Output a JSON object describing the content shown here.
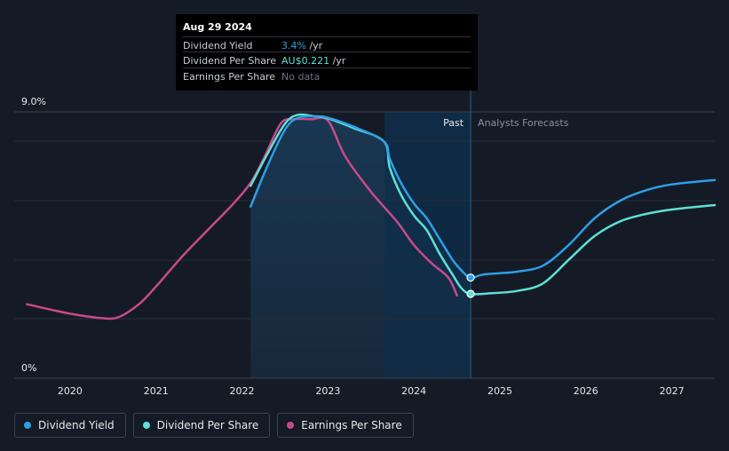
{
  "tooltip": {
    "date": "Aug 29 2024",
    "rows": [
      {
        "label": "Dividend Yield",
        "value": "3.4%",
        "unit": " /yr",
        "color": "#2e9fe6"
      },
      {
        "label": "Dividend Per Share",
        "value": "AU$0.221",
        "unit": " /yr",
        "color": "#5ce1d6"
      },
      {
        "label": "Earnings Per Share",
        "value": "No data",
        "unit": "",
        "color": "#6b7280"
      }
    ]
  },
  "legend": [
    {
      "label": "Dividend Yield",
      "color": "#2e9fe6"
    },
    {
      "label": "Dividend Per Share",
      "color": "#5ce1d6"
    },
    {
      "label": "Earnings Per Share",
      "color": "#c94a8a"
    }
  ],
  "chart_data": {
    "type": "line",
    "y_axis": {
      "top_label": "9.0%",
      "bottom_label": "0%",
      "ylim": [
        0,
        9
      ]
    },
    "x_axis": {
      "ticks": [
        "2020",
        "2021",
        "2022",
        "2023",
        "2024",
        "2025",
        "2026",
        "2027"
      ],
      "xlim": [
        2019.35,
        2027.5
      ]
    },
    "regions": {
      "past_label": "Past",
      "forecast_label": "Analysts Forecasts",
      "split_x": 2024.66,
      "shade_start": 2022.1,
      "dark_start": 2023.66
    },
    "grid": true,
    "series": [
      {
        "name": "Dividend Yield",
        "color": "#2e9fe6",
        "points": [
          [
            2022.1,
            5.8
          ],
          [
            2022.3,
            7.2
          ],
          [
            2022.5,
            8.4
          ],
          [
            2022.65,
            8.8
          ],
          [
            2022.85,
            8.85
          ],
          [
            2023.0,
            8.8
          ],
          [
            2023.3,
            8.5
          ],
          [
            2023.65,
            8.0
          ],
          [
            2023.72,
            7.4
          ],
          [
            2023.85,
            6.6
          ],
          [
            2024.0,
            5.9
          ],
          [
            2024.15,
            5.4
          ],
          [
            2024.3,
            4.7
          ],
          [
            2024.45,
            4.0
          ],
          [
            2024.55,
            3.65
          ],
          [
            2024.66,
            3.4
          ],
          [
            2024.8,
            3.5
          ],
          [
            2025.0,
            3.55
          ],
          [
            2025.2,
            3.6
          ],
          [
            2025.5,
            3.8
          ],
          [
            2025.8,
            4.5
          ],
          [
            2026.1,
            5.4
          ],
          [
            2026.4,
            6.0
          ],
          [
            2026.7,
            6.35
          ],
          [
            2027.0,
            6.55
          ],
          [
            2027.5,
            6.7
          ]
        ]
      },
      {
        "name": "Dividend Per Share",
        "color": "#5ce1d6",
        "points": [
          [
            2022.1,
            6.5
          ],
          [
            2022.3,
            7.6
          ],
          [
            2022.5,
            8.6
          ],
          [
            2022.65,
            8.9
          ],
          [
            2022.85,
            8.85
          ],
          [
            2023.0,
            8.78
          ],
          [
            2023.3,
            8.45
          ],
          [
            2023.65,
            8.0
          ],
          [
            2023.72,
            7.1
          ],
          [
            2023.85,
            6.2
          ],
          [
            2024.0,
            5.5
          ],
          [
            2024.15,
            5.0
          ],
          [
            2024.3,
            4.2
          ],
          [
            2024.45,
            3.5
          ],
          [
            2024.55,
            3.05
          ],
          [
            2024.66,
            2.85
          ],
          [
            2024.9,
            2.87
          ],
          [
            2025.2,
            2.95
          ],
          [
            2025.5,
            3.2
          ],
          [
            2025.8,
            4.0
          ],
          [
            2026.1,
            4.8
          ],
          [
            2026.4,
            5.3
          ],
          [
            2026.7,
            5.55
          ],
          [
            2027.0,
            5.7
          ],
          [
            2027.5,
            5.85
          ]
        ]
      },
      {
        "name": "Earnings Per Share",
        "color": "#c94a8a",
        "points": [
          [
            2019.5,
            2.5
          ],
          [
            2019.8,
            2.3
          ],
          [
            2020.0,
            2.18
          ],
          [
            2020.3,
            2.05
          ],
          [
            2020.55,
            2.05
          ],
          [
            2020.8,
            2.5
          ],
          [
            2021.0,
            3.1
          ],
          [
            2021.3,
            4.1
          ],
          [
            2021.6,
            5.0
          ],
          [
            2021.9,
            5.9
          ],
          [
            2022.1,
            6.6
          ],
          [
            2022.25,
            7.4
          ],
          [
            2022.45,
            8.6
          ],
          [
            2022.6,
            8.75
          ],
          [
            2022.8,
            8.75
          ],
          [
            2023.0,
            8.7
          ],
          [
            2023.2,
            7.5
          ],
          [
            2023.5,
            6.3
          ],
          [
            2023.8,
            5.3
          ],
          [
            2024.0,
            4.5
          ],
          [
            2024.2,
            3.9
          ],
          [
            2024.4,
            3.4
          ],
          [
            2024.5,
            2.8
          ]
        ]
      }
    ],
    "markers": [
      {
        "series": "Dividend Yield",
        "x": 2024.66,
        "y": 3.4
      },
      {
        "series": "Dividend Per Share",
        "x": 2024.66,
        "y": 2.85
      }
    ]
  }
}
